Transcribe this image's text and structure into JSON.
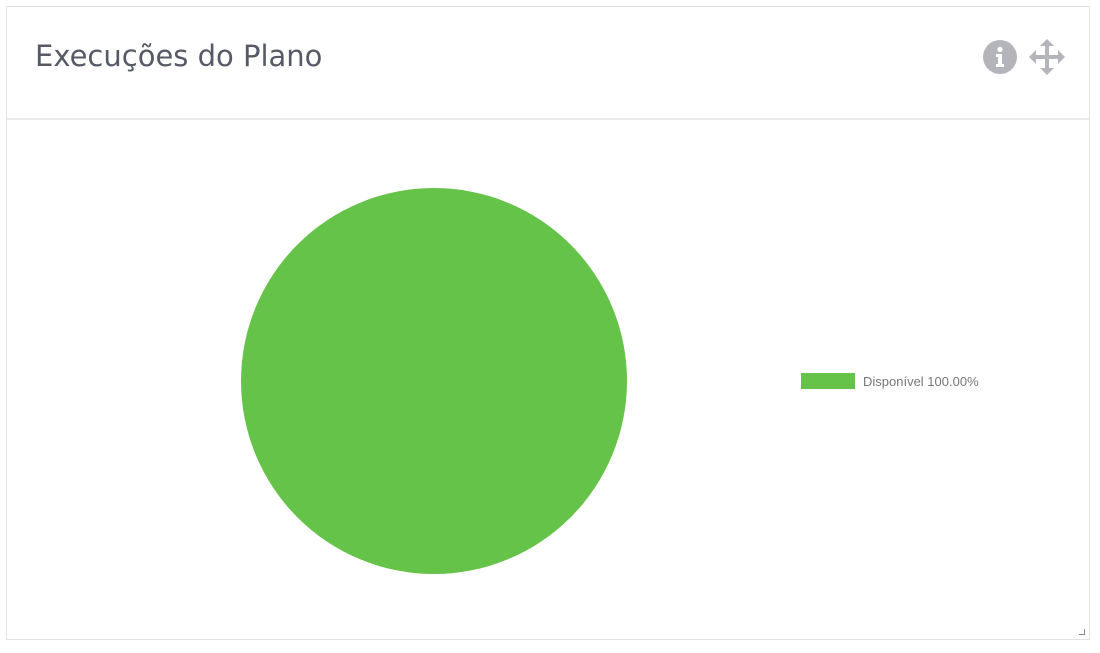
{
  "header": {
    "title": "Execuções do Plano",
    "icons": [
      "info-icon",
      "move-icon"
    ]
  },
  "colors": {
    "slice": "#66c34a"
  },
  "chart_data": {
    "type": "pie",
    "categories": [
      "Disponível"
    ],
    "values": [
      100
    ],
    "legend": [
      {
        "label": "Disponível 100.00%",
        "color": "#66c34a"
      }
    ],
    "legend_placement": "right"
  }
}
